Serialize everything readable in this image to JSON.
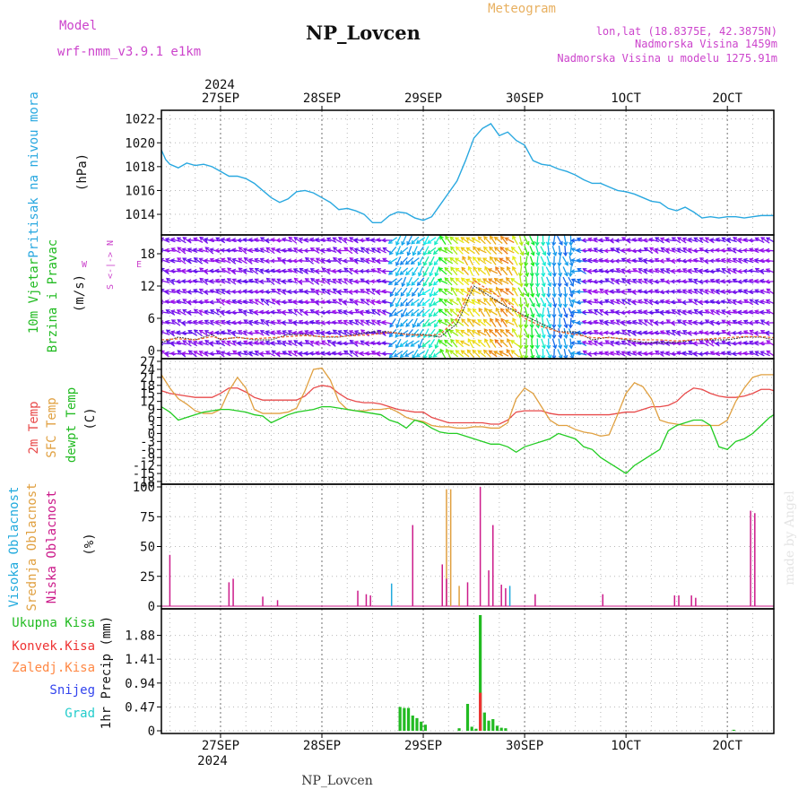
{
  "header": {
    "model_label": "Model",
    "model_value": "wrf-nmm_v3.9.1 e1km",
    "title": "NP_Lovcen",
    "product": "Meteogram",
    "lonlat": "lon,lat (18.8375E, 42.3875N)",
    "elevation": "Nadmorska Visina 1459m",
    "model_elevation": "Nadmorska Visina u modelu 1275.91m",
    "watermark": "made by Angel",
    "footer_station": "NP_Lovcen"
  },
  "colors": {
    "pressure": "#29a8e0",
    "temp2m": "#e84a4a",
    "sfc": "#e0a040",
    "dewpt": "#22cc22",
    "high": "#22aadd",
    "mid": "#e0a040",
    "low": "#cc1a8a",
    "total": "#22bb22",
    "conv": "#ee3333",
    "frozen": "#ff8844",
    "snow": "#3344ee",
    "grad": "#22cccc",
    "magenta_label": "#cc44cc",
    "green_label": "#22bb22"
  },
  "time_axis": {
    "year_label": "2024",
    "ticks": [
      "27SEP",
      "28SEP",
      "29SEP",
      "30SEP",
      "1OCT",
      "2OCT"
    ],
    "start_hour": -14,
    "end_hour": 131
  },
  "panels": {
    "pressure": {
      "label": "Pritisak na nivou mora",
      "unit": "(hPa)",
      "yticks": [
        "1014",
        "1016",
        "1018",
        "1020",
        "1022"
      ]
    },
    "wind": {
      "label_line1": "10m Vjetar",
      "label_line2": "Brzina i Pravac",
      "unit": "(m/s)",
      "yticks": [
        "0",
        "6",
        "12",
        "18"
      ],
      "compass_n": "N",
      "compass_s": "S",
      "compass_w": "W",
      "compass_e": "E",
      "compass_glyph": "<-|->"
    },
    "temperature": {
      "label_2m": "2m Temp",
      "label_sfc": "SFC Temp",
      "label_dew": "dewpt Temp",
      "unit": "(C)",
      "yticks": [
        "-18",
        "-15",
        "-12",
        "-9",
        "-6",
        "-3",
        "0",
        "3",
        "6",
        "9",
        "12",
        "15",
        "18",
        "21",
        "24",
        "27"
      ]
    },
    "cloud": {
      "label_high": "Visoka Oblacnost",
      "label_mid": "Srednja Oblacnost",
      "label_low": "Niska Oblacnost",
      "unit": "(%)",
      "yticks": [
        "0",
        "25",
        "50",
        "75",
        "100"
      ]
    },
    "precip": {
      "legend": [
        "Ukupna Kisa",
        "Konvek.Kisa",
        "Zaledj.Kisa",
        "Snijeg",
        "Grad"
      ],
      "unit": "1hr Precip (mm)",
      "yticks": [
        "0",
        "0.47",
        "0.94",
        "1.41",
        "1.88"
      ]
    }
  },
  "chart_data": [
    {
      "type": "line",
      "name": "pressure",
      "ylim": [
        1012.5,
        1022.5
      ],
      "x": [
        -14,
        -13,
        -12,
        -10,
        -8,
        -6,
        -4,
        -2,
        0,
        2,
        4,
        6,
        8,
        10,
        12,
        14,
        16,
        18,
        20,
        22,
        24,
        26,
        28,
        30,
        32,
        34,
        36,
        38,
        40,
        42,
        44,
        46,
        48,
        50,
        52,
        54,
        56,
        58,
        60,
        62,
        64,
        66,
        68,
        70,
        72,
        74,
        76,
        78,
        80,
        82,
        84,
        86,
        88,
        90,
        92,
        94,
        96,
        98,
        100,
        102,
        104,
        106,
        108,
        110,
        112,
        114,
        116,
        118,
        120,
        122,
        124,
        126,
        128,
        130,
        131
      ],
      "y": [
        1019.4,
        1018.6,
        1018.2,
        1017.9,
        1018.3,
        1018.1,
        1018.2,
        1018,
        1017.6,
        1017.2,
        1017.2,
        1017,
        1016.6,
        1016,
        1015.4,
        1015,
        1015.3,
        1015.9,
        1016,
        1015.8,
        1015.4,
        1015,
        1014.4,
        1014.5,
        1014.3,
        1014,
        1013.3,
        1013.3,
        1013.9,
        1014.2,
        1014.1,
        1013.7,
        1013.5,
        1013.8,
        1014.8,
        1015.8,
        1016.8,
        1018.5,
        1020.4,
        1021.2,
        1021.6,
        1020.6,
        1020.9,
        1020.2,
        1019.8,
        1018.5,
        1018.2,
        1018.1,
        1017.8,
        1017.6,
        1017.3,
        1016.9,
        1016.6,
        1016.6,
        1016.3,
        1016,
        1015.9,
        1015.7,
        1015.4,
        1015.1,
        1015,
        1014.5,
        1014.3,
        1014.6,
        1014.2,
        1013.7,
        1013.8,
        1013.7,
        1013.8,
        1013.8,
        1013.7,
        1013.8,
        1013.9,
        1013.9,
        1013.9
      ]
    },
    {
      "type": "line",
      "name": "wind",
      "ylim": [
        -1,
        21
      ],
      "x": [
        -14,
        -10,
        -6,
        -2,
        0,
        4,
        8,
        12,
        16,
        20,
        24,
        28,
        32,
        36,
        40,
        44,
        48,
        52,
        56,
        60,
        64,
        68,
        72,
        76,
        80,
        84,
        88,
        92,
        96,
        100,
        104,
        108,
        112,
        116,
        120,
        124,
        128,
        131
      ],
      "y": [
        1.5,
        2.5,
        2,
        3,
        2,
        2.5,
        2,
        2,
        3,
        3,
        2.5,
        2.5,
        3,
        3.5,
        3.5,
        3,
        3,
        2.5,
        5,
        12,
        10,
        8,
        6.5,
        5,
        3.5,
        3.5,
        2,
        2.5,
        2,
        1.5,
        1.5,
        1.5,
        2,
        2,
        2,
        2.5,
        2.5,
        2
      ],
      "gust": [
        2,
        2.2,
        2,
        2.6,
        2.2,
        2.4,
        2.2,
        2.4,
        2.6,
        2.8,
        2.6,
        2.6,
        2.8,
        3,
        3.4,
        3,
        2.8,
        3,
        6,
        13,
        11,
        9,
        6,
        4.5,
        3.5,
        3,
        2.4,
        2.4,
        2.2,
        2,
        2,
        1.8,
        2,
        2.2,
        2.4,
        2.6,
        2.6,
        2.4
      ]
    },
    {
      "type": "line",
      "name": "temperature",
      "ylim": [
        -18,
        27
      ],
      "x": [
        -14,
        -12,
        -10,
        -8,
        -6,
        -4,
        -2,
        0,
        2,
        4,
        6,
        8,
        10,
        12,
        14,
        16,
        18,
        20,
        22,
        24,
        26,
        28,
        30,
        32,
        34,
        36,
        38,
        40,
        42,
        44,
        46,
        48,
        50,
        52,
        54,
        56,
        58,
        60,
        62,
        64,
        66,
        68,
        70,
        72,
        74,
        76,
        78,
        80,
        82,
        84,
        86,
        88,
        90,
        92,
        94,
        96,
        98,
        100,
        102,
        104,
        106,
        108,
        110,
        112,
        114,
        116,
        118,
        120,
        122,
        124,
        126,
        128,
        130,
        131
      ],
      "series": [
        {
          "name": "2m Temp",
          "values": [
            16,
            15,
            14.5,
            14,
            13.5,
            13.5,
            13.5,
            15,
            17,
            17,
            15.5,
            13.5,
            12.5,
            12.5,
            12.5,
            12.5,
            12.5,
            14,
            17,
            18,
            17.5,
            15,
            13,
            12,
            11.5,
            11.5,
            11,
            10,
            9,
            8.5,
            8,
            8,
            6,
            5,
            4,
            4,
            4,
            4,
            4,
            3.5,
            3.5,
            5,
            8,
            8.5,
            8.5,
            8.5,
            7.5,
            7,
            7,
            7,
            7,
            7,
            7,
            7,
            7.5,
            8,
            8,
            9,
            10,
            10,
            10.5,
            12,
            15,
            17,
            16.5,
            15,
            14,
            13.5,
            13.5,
            14,
            15,
            16.5,
            16.5,
            16
          ]
        },
        {
          "name": "SFC Temp",
          "values": [
            22,
            17,
            13,
            11,
            8.5,
            7.5,
            7.5,
            9,
            16,
            21,
            17,
            9,
            7.5,
            7.5,
            7.5,
            8,
            9.5,
            16,
            24,
            24.5,
            20,
            12,
            9,
            8.5,
            8.5,
            9,
            9,
            9.5,
            8,
            6,
            5,
            4.5,
            3,
            2.5,
            2.5,
            2,
            2,
            2.5,
            2.5,
            2,
            2,
            4,
            13,
            17,
            15,
            10,
            5,
            3,
            3,
            1.5,
            0.5,
            0,
            -1,
            -0.5,
            7,
            15,
            19,
            17.5,
            13,
            5,
            4,
            3.5,
            3,
            3,
            3,
            3,
            3,
            5,
            12,
            17,
            21,
            22,
            22,
            22
          ]
        },
        {
          "name": "dewpt Temp",
          "values": [
            10,
            8,
            5,
            6,
            7,
            8,
            8.5,
            9,
            9,
            8.5,
            8,
            7,
            6.5,
            4,
            5.5,
            7,
            8,
            8.5,
            9,
            10,
            10,
            9.5,
            9,
            8.5,
            8,
            7.5,
            7,
            5,
            4,
            2,
            5,
            4,
            2,
            0.5,
            0,
            0,
            -1,
            -2,
            -3,
            -4,
            -4,
            -5,
            -7,
            -5,
            -4,
            -3,
            -2,
            0,
            -1,
            -2,
            -5,
            -6,
            -9,
            -11,
            -13,
            -15,
            -12,
            -10,
            -8,
            -6,
            1,
            3,
            4,
            5,
            5,
            3,
            -5,
            -6,
            -3,
            -2,
            0,
            3,
            6,
            7
          ]
        }
      ]
    },
    {
      "type": "bar",
      "name": "cloud",
      "ylim": [
        0,
        100
      ],
      "series": [
        {
          "name": "Visoka Oblacnost",
          "bars": [
            [
              40.5,
              19
            ],
            [
              68.5,
              17
            ]
          ]
        },
        {
          "name": "Srednja Oblacnost",
          "bars": [
            [
              53.5,
              98
            ],
            [
              54.5,
              98
            ],
            [
              56.5,
              17
            ]
          ]
        },
        {
          "name": "Niska Oblacnost",
          "bars": [
            [
              -12,
              43
            ],
            [
              2,
              20
            ],
            [
              3,
              23
            ],
            [
              10,
              8
            ],
            [
              13.5,
              5
            ],
            [
              32.5,
              13
            ],
            [
              34.5,
              10
            ],
            [
              35.5,
              9
            ],
            [
              45.5,
              68
            ],
            [
              52.5,
              35
            ],
            [
              53.5,
              23
            ],
            [
              58.5,
              20
            ],
            [
              61.5,
              100
            ],
            [
              63.5,
              30
            ],
            [
              64.5,
              68
            ],
            [
              66.5,
              18
            ],
            [
              67.5,
              15
            ],
            [
              74.5,
              10
            ],
            [
              90.5,
              10
            ],
            [
              107.5,
              9
            ],
            [
              108.5,
              9
            ],
            [
              111.5,
              9
            ],
            [
              112.5,
              7
            ],
            [
              125.5,
              80
            ],
            [
              126.5,
              78
            ]
          ]
        }
      ]
    },
    {
      "type": "bar",
      "name": "precip",
      "ylim": [
        0,
        2.35
      ],
      "series": [
        {
          "name": "Ukupna Kisa",
          "bars": [
            [
              42.5,
              0.47
            ],
            [
              43.5,
              0.45
            ],
            [
              44.5,
              0.45
            ],
            [
              45.5,
              0.3
            ],
            [
              46.5,
              0.25
            ],
            [
              47.5,
              0.18
            ],
            [
              48.5,
              0.12
            ],
            [
              56.5,
              0.05
            ],
            [
              58.5,
              0.53
            ],
            [
              59.5,
              0.08
            ],
            [
              60.5,
              0.04
            ],
            [
              61.5,
              2.28
            ],
            [
              62.5,
              0.36
            ],
            [
              63.5,
              0.2
            ],
            [
              64.5,
              0.23
            ],
            [
              65.5,
              0.1
            ],
            [
              66.5,
              0.06
            ],
            [
              67.5,
              0.05
            ],
            [
              121.5,
              0.02
            ]
          ]
        },
        {
          "name": "Konvek.Kisa",
          "bars": [
            [
              61.5,
              0.75
            ]
          ]
        }
      ]
    }
  ]
}
